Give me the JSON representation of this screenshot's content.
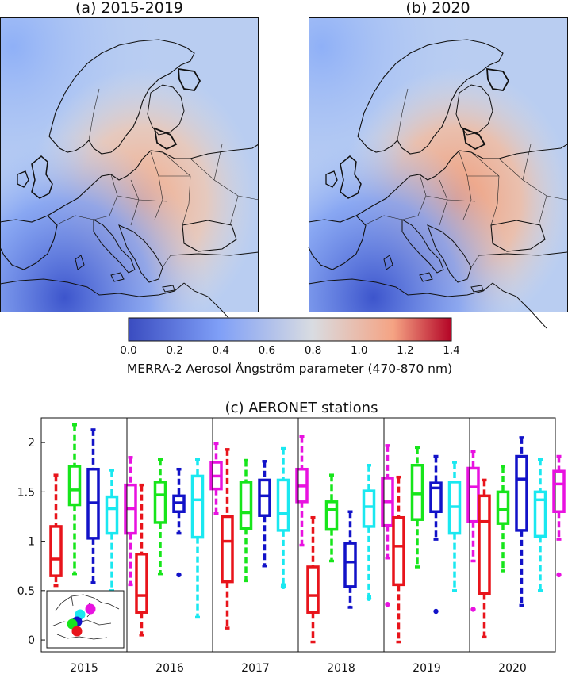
{
  "maps": {
    "left_title": "(a) 2015-2019",
    "right_title": "(b) 2020",
    "colorbar_label": "MERRA-2 Aerosol Ångström parameter (470-870 nm)",
    "colorbar_ticks": [
      "0.0",
      "0.2",
      "0.4",
      "0.6",
      "0.8",
      "1.0",
      "1.2",
      "1.4"
    ],
    "colormap": [
      "#3a4cc0",
      "#7f9ff7",
      "#d9dce1",
      "#f5a383",
      "#b40426"
    ]
  },
  "chart_data": {
    "type": "box",
    "title": "(c) AERONET stations",
    "xlabel": "",
    "ylabel": "",
    "ylim": [
      -0.12,
      2.25
    ],
    "yticks": [
      "0",
      "0.5",
      "1",
      "1.5",
      "2"
    ],
    "categories": [
      "2015",
      "2016",
      "2017",
      "2018",
      "2019",
      "2020"
    ],
    "series_colors": [
      "#e8141b",
      "#17e51b",
      "#1212c8",
      "#1ae8f0",
      "#e812e0"
    ],
    "boxes": [
      [
        {
          "whisker_low": 0.55,
          "q1": 0.65,
          "median": 0.82,
          "q3": 1.15,
          "whisker_high": 1.67,
          "outliers": []
        },
        {
          "whisker_low": 0.67,
          "q1": 1.37,
          "median": 1.52,
          "q3": 1.76,
          "whisker_high": 2.18,
          "outliers": []
        },
        {
          "whisker_low": 0.58,
          "q1": 1.03,
          "median": 1.39,
          "q3": 1.73,
          "whisker_high": 2.13,
          "outliers": []
        },
        {
          "whisker_low": 0.5,
          "q1": 1.08,
          "median": 1.33,
          "q3": 1.45,
          "whisker_high": 1.72,
          "outliers": []
        },
        {
          "whisker_low": 0.56,
          "q1": 1.08,
          "median": 1.33,
          "q3": 1.57,
          "whisker_high": 1.85,
          "outliers": []
        }
      ],
      [
        {
          "whisker_low": 0.05,
          "q1": 0.28,
          "median": 0.45,
          "q3": 0.87,
          "whisker_high": 1.57,
          "outliers": []
        },
        {
          "whisker_low": 0.67,
          "q1": 1.19,
          "median": 1.47,
          "q3": 1.6,
          "whisker_high": 1.83,
          "outliers": []
        },
        {
          "whisker_low": 1.08,
          "q1": 1.3,
          "median": 1.39,
          "q3": 1.46,
          "whisker_high": 1.73,
          "outliers": [
            0.66
          ]
        },
        {
          "whisker_low": 0.23,
          "q1": 1.04,
          "median": 1.42,
          "q3": 1.66,
          "whisker_high": 1.83,
          "outliers": []
        },
        {
          "whisker_low": 1.28,
          "q1": 1.53,
          "median": 1.66,
          "q3": 1.8,
          "whisker_high": 1.99,
          "outliers": []
        }
      ],
      [
        {
          "whisker_low": 0.12,
          "q1": 0.59,
          "median": 1.0,
          "q3": 1.25,
          "whisker_high": 1.93,
          "outliers": []
        },
        {
          "whisker_low": 0.6,
          "q1": 1.13,
          "median": 1.29,
          "q3": 1.6,
          "whisker_high": 1.82,
          "outliers": []
        },
        {
          "whisker_low": 0.75,
          "q1": 1.26,
          "median": 1.46,
          "q3": 1.62,
          "whisker_high": 1.81,
          "outliers": []
        },
        {
          "whisker_low": 0.56,
          "q1": 1.11,
          "median": 1.28,
          "q3": 1.62,
          "whisker_high": 1.94,
          "outliers": [
            0.54
          ]
        },
        {
          "whisker_low": 0.96,
          "q1": 1.4,
          "median": 1.56,
          "q3": 1.73,
          "whisker_high": 2.06,
          "outliers": []
        }
      ],
      [
        {
          "whisker_low": -0.02,
          "q1": 0.28,
          "median": 0.45,
          "q3": 0.74,
          "whisker_high": 1.24,
          "outliers": []
        },
        {
          "whisker_low": 0.8,
          "q1": 1.12,
          "median": 1.32,
          "q3": 1.4,
          "whisker_high": 1.67,
          "outliers": []
        },
        {
          "whisker_low": 0.33,
          "q1": 0.54,
          "median": 0.79,
          "q3": 0.98,
          "whisker_high": 1.3,
          "outliers": []
        },
        {
          "whisker_low": 0.44,
          "q1": 1.15,
          "median": 1.35,
          "q3": 1.51,
          "whisker_high": 1.77,
          "outliers": [
            0.42
          ]
        },
        {
          "whisker_low": 0.83,
          "q1": 1.16,
          "median": 1.4,
          "q3": 1.64,
          "whisker_high": 1.97,
          "outliers": [
            0.36
          ]
        }
      ],
      [
        {
          "whisker_low": -0.02,
          "q1": 0.56,
          "median": 0.95,
          "q3": 1.24,
          "whisker_high": 1.65,
          "outliers": []
        },
        {
          "whisker_low": 0.74,
          "q1": 1.22,
          "median": 1.48,
          "q3": 1.77,
          "whisker_high": 1.95,
          "outliers": []
        },
        {
          "whisker_low": 1.02,
          "q1": 1.3,
          "median": 1.54,
          "q3": 1.59,
          "whisker_high": 1.86,
          "outliers": [
            0.29
          ]
        },
        {
          "whisker_low": 0.5,
          "q1": 1.08,
          "median": 1.35,
          "q3": 1.6,
          "whisker_high": 1.8,
          "outliers": []
        },
        {
          "whisker_low": 0.8,
          "q1": 1.2,
          "median": 1.55,
          "q3": 1.74,
          "whisker_high": 1.91,
          "outliers": [
            0.31
          ]
        }
      ],
      [
        {
          "whisker_low": 0.03,
          "q1": 0.47,
          "median": 1.2,
          "q3": 1.46,
          "whisker_high": 1.62,
          "outliers": []
        },
        {
          "whisker_low": 0.7,
          "q1": 1.18,
          "median": 1.32,
          "q3": 1.5,
          "whisker_high": 1.76,
          "outliers": []
        },
        {
          "whisker_low": 0.35,
          "q1": 1.11,
          "median": 1.63,
          "q3": 1.86,
          "whisker_high": 2.05,
          "outliers": []
        },
        {
          "whisker_low": 0.5,
          "q1": 1.05,
          "median": 1.42,
          "q3": 1.5,
          "whisker_high": 1.83,
          "outliers": []
        },
        {
          "whisker_low": 1.02,
          "q1": 1.3,
          "median": 1.58,
          "q3": 1.71,
          "whisker_high": 1.86,
          "outliers": [
            0.66
          ]
        }
      ]
    ],
    "grid": false,
    "legend": "none"
  }
}
